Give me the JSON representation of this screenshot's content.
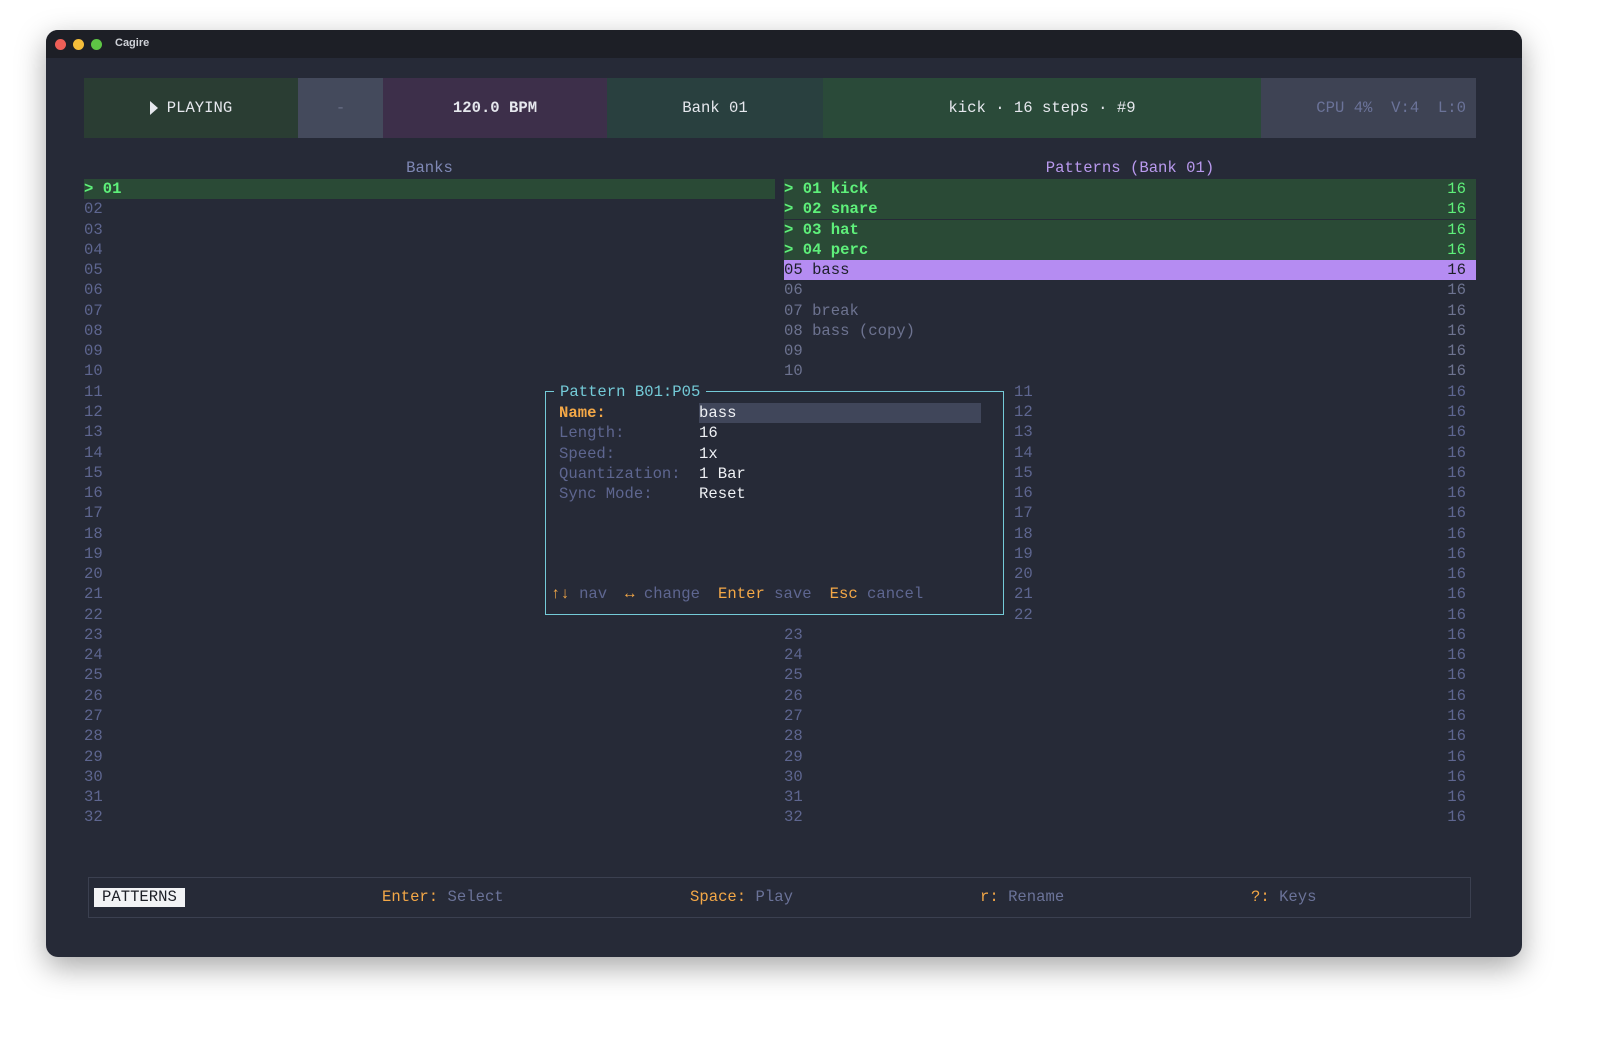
{
  "window": {
    "title": "Cagire"
  },
  "header": {
    "play_icon": "play-triangle-icon",
    "status": "PLAYING",
    "dash": "-",
    "bpm": "120.0 BPM",
    "bank": "Bank 01",
    "pattern_info": "kick · 16 steps · #9",
    "stats": "CPU 4%  V:4  L:0",
    "colors": {
      "playing": "#2a3d33",
      "dash": "#444a5c",
      "bpm": "#3d2f4a",
      "bank": "#29403f",
      "pattern": "#2a4a39",
      "stats": "#3e4354"
    }
  },
  "banks": {
    "title": "Banks",
    "selected_marker": ">",
    "items": [
      "01",
      "02",
      "03",
      "04",
      "05",
      "06",
      "07",
      "08",
      "09",
      "10",
      "11",
      "12",
      "13",
      "14",
      "15",
      "16",
      "17",
      "18",
      "19",
      "20",
      "21",
      "22",
      "23",
      "24",
      "25",
      "26",
      "27",
      "28",
      "29",
      "30",
      "31",
      "32"
    ]
  },
  "patterns": {
    "title": "Patterns (Bank 01)",
    "items": [
      {
        "num": "01",
        "name": "kick",
        "len": "16",
        "state": "playing"
      },
      {
        "num": "02",
        "name": "snare",
        "len": "16",
        "state": "playing"
      },
      {
        "num": "03",
        "name": "hat",
        "len": "16",
        "state": "playing"
      },
      {
        "num": "04",
        "name": "perc",
        "len": "16",
        "state": "playing"
      },
      {
        "num": "05",
        "name": "bass",
        "len": "16",
        "state": "selected"
      },
      {
        "num": "06",
        "name": "",
        "len": "16"
      },
      {
        "num": "07",
        "name": "break",
        "len": "16"
      },
      {
        "num": "08",
        "name": "bass (copy)",
        "len": "16"
      },
      {
        "num": "09",
        "name": "",
        "len": "16"
      },
      {
        "num": "10",
        "name": "",
        "len": "16"
      },
      {
        "num": "11",
        "name": "",
        "len": "16"
      },
      {
        "num": "12",
        "name": "",
        "len": "16"
      },
      {
        "num": "13",
        "name": "",
        "len": "16"
      },
      {
        "num": "14",
        "name": "",
        "len": "16"
      },
      {
        "num": "15",
        "name": "",
        "len": "16"
      },
      {
        "num": "16",
        "name": "",
        "len": "16"
      },
      {
        "num": "17",
        "name": "",
        "len": "16"
      },
      {
        "num": "18",
        "name": "",
        "len": "16"
      },
      {
        "num": "19",
        "name": "",
        "len": "16"
      },
      {
        "num": "20",
        "name": "",
        "len": "16"
      },
      {
        "num": "21",
        "name": "",
        "len": "16"
      },
      {
        "num": "22",
        "name": "",
        "len": "16"
      },
      {
        "num": "23",
        "name": "",
        "len": "16"
      },
      {
        "num": "24",
        "name": "",
        "len": "16"
      },
      {
        "num": "25",
        "name": "",
        "len": "16"
      },
      {
        "num": "26",
        "name": "",
        "len": "16"
      },
      {
        "num": "27",
        "name": "",
        "len": "16"
      },
      {
        "num": "28",
        "name": "",
        "len": "16"
      },
      {
        "num": "29",
        "name": "",
        "len": "16"
      },
      {
        "num": "30",
        "name": "",
        "len": "16"
      },
      {
        "num": "31",
        "name": "",
        "len": "16"
      },
      {
        "num": "32",
        "name": "",
        "len": "16"
      }
    ]
  },
  "modal": {
    "title": "Pattern B01:P05",
    "fields": [
      {
        "label": "Name:",
        "value": "bass"
      },
      {
        "label": "Length:",
        "value": "16"
      },
      {
        "label": "Speed:",
        "value": "1x"
      },
      {
        "label": "Quantization:",
        "value": "1 Bar"
      },
      {
        "label": "Sync Mode:",
        "value": "Reset"
      }
    ],
    "hints": [
      {
        "key": "↑↓",
        "action": "nav"
      },
      {
        "key": "↔",
        "action": "change"
      },
      {
        "key": "Enter",
        "action": "save"
      },
      {
        "key": "Esc",
        "action": "cancel"
      }
    ]
  },
  "footer": {
    "mode": "PATTERNS",
    "hints": [
      {
        "key": "Enter:",
        "action": " Select"
      },
      {
        "key": "Space:",
        "action": " Play"
      },
      {
        "key": "r:",
        "action": " Rename"
      },
      {
        "key": "?:",
        "action": " Keys"
      }
    ]
  }
}
